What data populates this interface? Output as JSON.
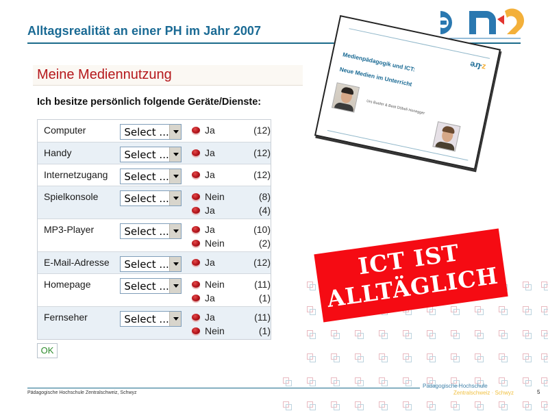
{
  "slide": {
    "title": "Alltagsrealität  an einer PH im Jahr 2007",
    "page_number": "5",
    "footer_text": "Pädagogische Hochschule Zentralschweiz, Schwyz",
    "brand_line1": "Pädagogische Hochschule",
    "brand_line2": "Zentralschweiz · Schwyz",
    "colors": {
      "title": "#1a6a94",
      "rule": "#1a6a8a",
      "stamp": "#f50b13",
      "logo_blue": "#2a78b0",
      "logo_orange": "#f3b03a",
      "logo_red": "#e3342f"
    }
  },
  "form": {
    "heading": "Meine Mediennutzung",
    "question": "Ich besitze persönlich folgende Geräte/Dienste:",
    "select_placeholder": "Select ...",
    "ok_label": "OK",
    "rows": [
      {
        "label": "Computer",
        "answers": [
          {
            "label": "Ja",
            "count": "(12)"
          }
        ]
      },
      {
        "label": "Handy",
        "answers": [
          {
            "label": "Ja",
            "count": "(12)"
          }
        ]
      },
      {
        "label": "Internetzugang",
        "answers": [
          {
            "label": "Ja",
            "count": "(12)"
          }
        ]
      },
      {
        "label": "Spielkonsole",
        "answers": [
          {
            "label": "Nein",
            "count": "(8)"
          },
          {
            "label": "Ja",
            "count": "(4)"
          }
        ]
      },
      {
        "label": "MP3-Player",
        "answers": [
          {
            "label": "Ja",
            "count": "(10)"
          },
          {
            "label": "Nein",
            "count": "(2)"
          }
        ]
      },
      {
        "label": "E-Mail-Adresse",
        "answers": [
          {
            "label": "Ja",
            "count": "(12)"
          }
        ]
      },
      {
        "label": "Homepage",
        "answers": [
          {
            "label": "Nein",
            "count": "(11)"
          },
          {
            "label": "Ja",
            "count": "(1)"
          }
        ]
      },
      {
        "label": "Fernseher",
        "answers": [
          {
            "label": "Ja",
            "count": "(11)"
          },
          {
            "label": "Nein",
            "count": "(1)"
          }
        ]
      }
    ]
  },
  "inset_slide": {
    "logo": "ə.ŋ·",
    "logo_accent": "z",
    "title_line1": "Medienpädagogik und ICT:",
    "title_line2": "Neue Medien im Unterricht",
    "authors": "Urs Bueler & Beat Döbeli Honegger"
  },
  "stamp": {
    "line1": "ICT IST",
    "line2": "ALLTÄGLICH"
  }
}
